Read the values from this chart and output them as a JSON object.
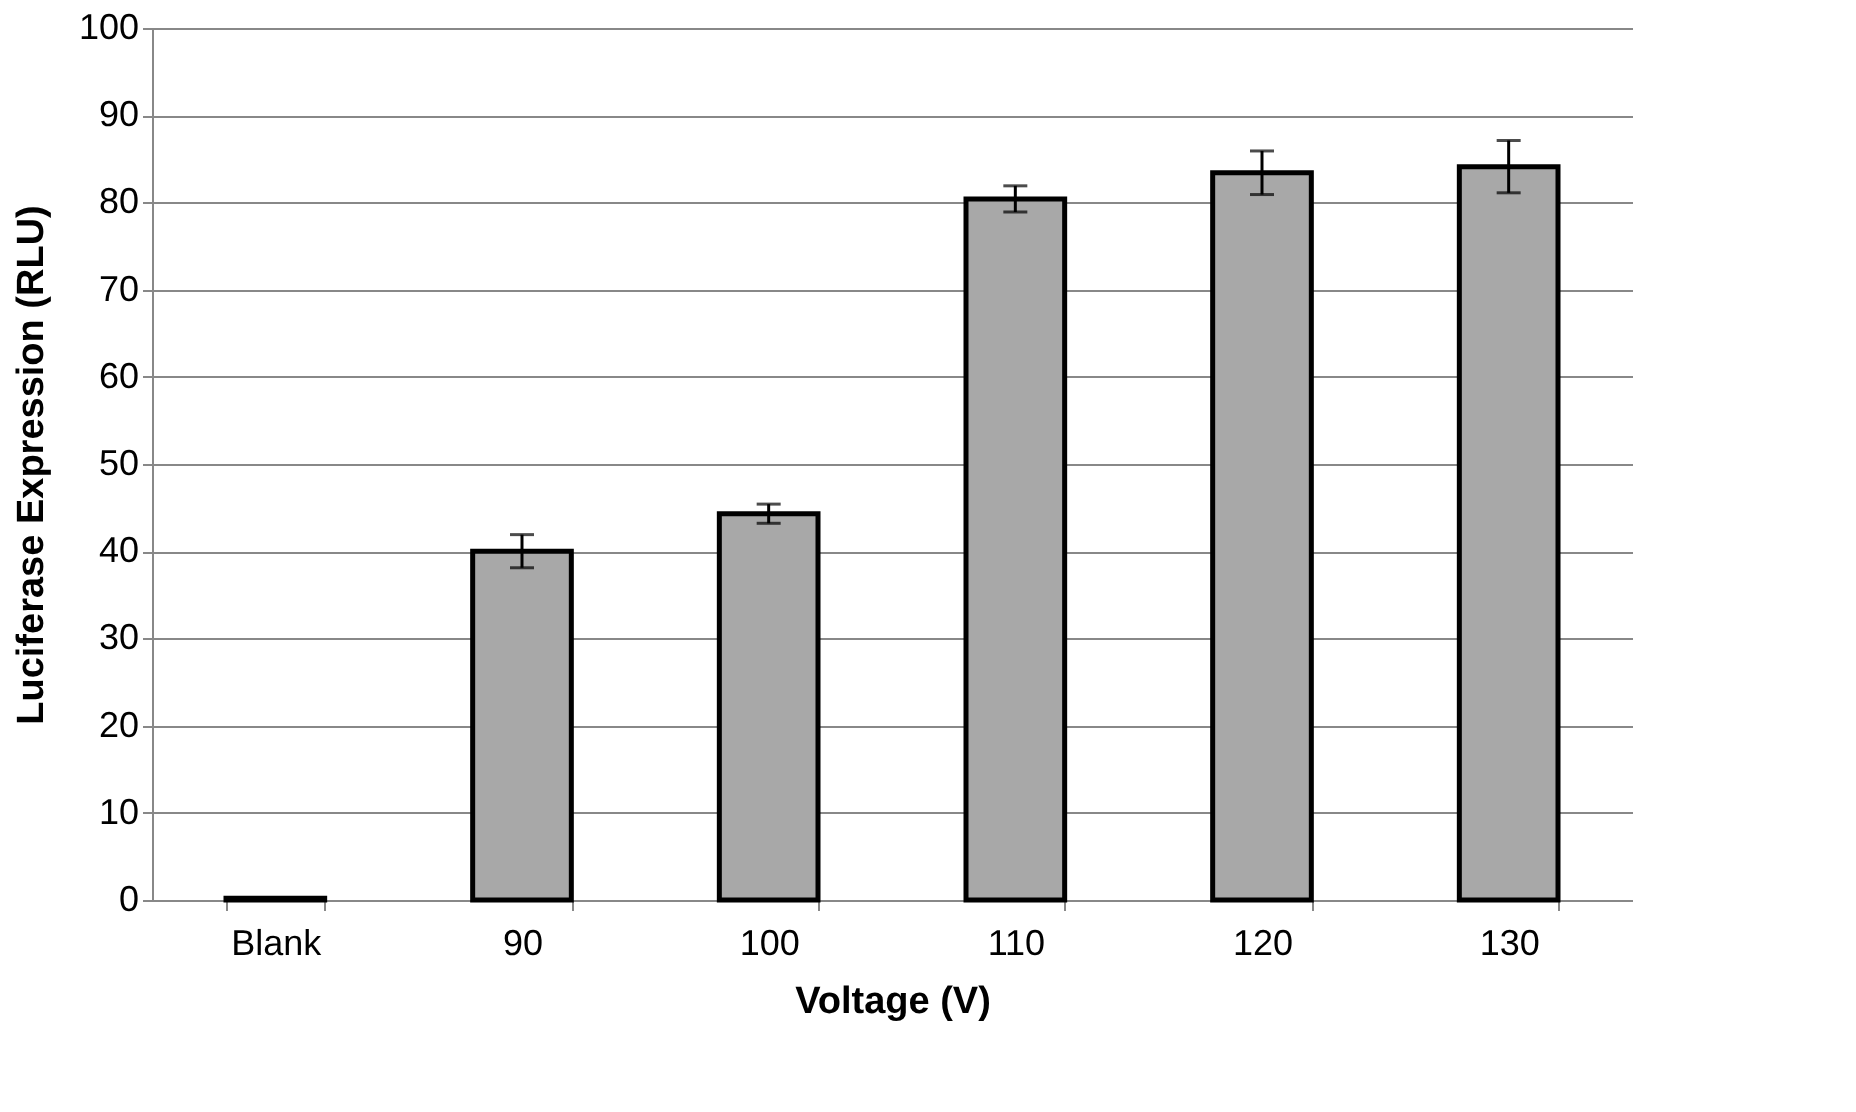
{
  "chart_data": {
    "type": "bar",
    "xlabel": "Voltage (V)",
    "ylabel": "Luciferase Expression (RLU)",
    "categories": [
      "Blank",
      "90",
      "100",
      "110",
      "120",
      "130"
    ],
    "values": [
      0.2,
      40.0,
      44.3,
      80.4,
      83.4,
      84.1
    ],
    "errors": [
      null,
      1.9,
      1.1,
      1.5,
      2.5,
      3.0
    ],
    "color": "#a8a8a8",
    "ylim": [
      0,
      100
    ],
    "yticks": [
      0,
      10,
      20,
      30,
      40,
      50,
      60,
      70,
      80,
      90,
      100
    ],
    "grid": "y"
  }
}
